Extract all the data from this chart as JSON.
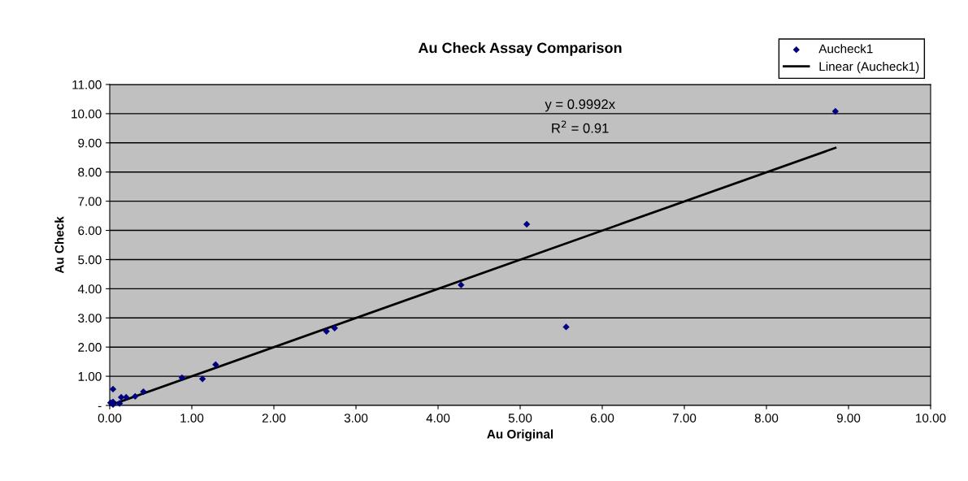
{
  "chart_data": {
    "type": "scatter",
    "title": "Au Check Assay Comparison",
    "xlabel": "Au Original",
    "ylabel": "Au Check",
    "series": [
      {
        "name": "Aucheck1",
        "color": "#000080",
        "marker": "diamond",
        "x": [
          0.01,
          0.04,
          0.04,
          0.04,
          0.12,
          0.14,
          0.2,
          0.31,
          0.41,
          0.88,
          1.13,
          1.29,
          2.64,
          2.74,
          4.28,
          5.08,
          5.56,
          8.84
        ],
        "values": [
          0.09,
          0.56,
          0.12,
          0.03,
          0.07,
          0.28,
          0.28,
          0.31,
          0.47,
          0.95,
          0.91,
          1.4,
          2.54,
          2.65,
          4.13,
          6.21,
          2.69,
          10.08
        ]
      },
      {
        "name": "Linear (Aucheck1)",
        "type": "line",
        "color": "#000000",
        "marker": "none",
        "line_style": "solid",
        "x": [
          0,
          8.84
        ],
        "values": [
          0,
          8.83
        ]
      }
    ],
    "annotations": [
      "y = 0.9992x",
      "R$^{2}$ = 0.91"
    ],
    "xlim": [
      0,
      10
    ],
    "xticks": [
      {
        "value": 0,
        "label": "0.00"
      },
      {
        "value": 1,
        "label": "1.00"
      },
      {
        "value": 2,
        "label": "2.00"
      },
      {
        "value": 3,
        "label": "3.00"
      },
      {
        "value": 4,
        "label": "4.00"
      },
      {
        "value": 5,
        "label": "5.00"
      },
      {
        "value": 6,
        "label": "6.00"
      },
      {
        "value": 7,
        "label": "7.00"
      },
      {
        "value": 8,
        "label": "8.00"
      },
      {
        "value": 9,
        "label": "9.00"
      },
      {
        "value": 10,
        "label": "10.00"
      }
    ],
    "ylim": [
      0,
      11
    ],
    "yticks": [
      {
        "value": 0,
        "label": "-"
      },
      {
        "value": 1,
        "label": "1.00"
      },
      {
        "value": 2,
        "label": "2.00"
      },
      {
        "value": 3,
        "label": "3.00"
      },
      {
        "value": 4,
        "label": "4.00"
      },
      {
        "value": 5,
        "label": "5.00"
      },
      {
        "value": 6,
        "label": "6.00"
      },
      {
        "value": 7,
        "label": "7.00"
      },
      {
        "value": 8,
        "label": "8.00"
      },
      {
        "value": 9,
        "label": "9.00"
      },
      {
        "value": 10,
        "label": "10.00"
      },
      {
        "value": 11,
        "label": "11.00"
      }
    ],
    "grid": "y",
    "legend": "top right"
  }
}
